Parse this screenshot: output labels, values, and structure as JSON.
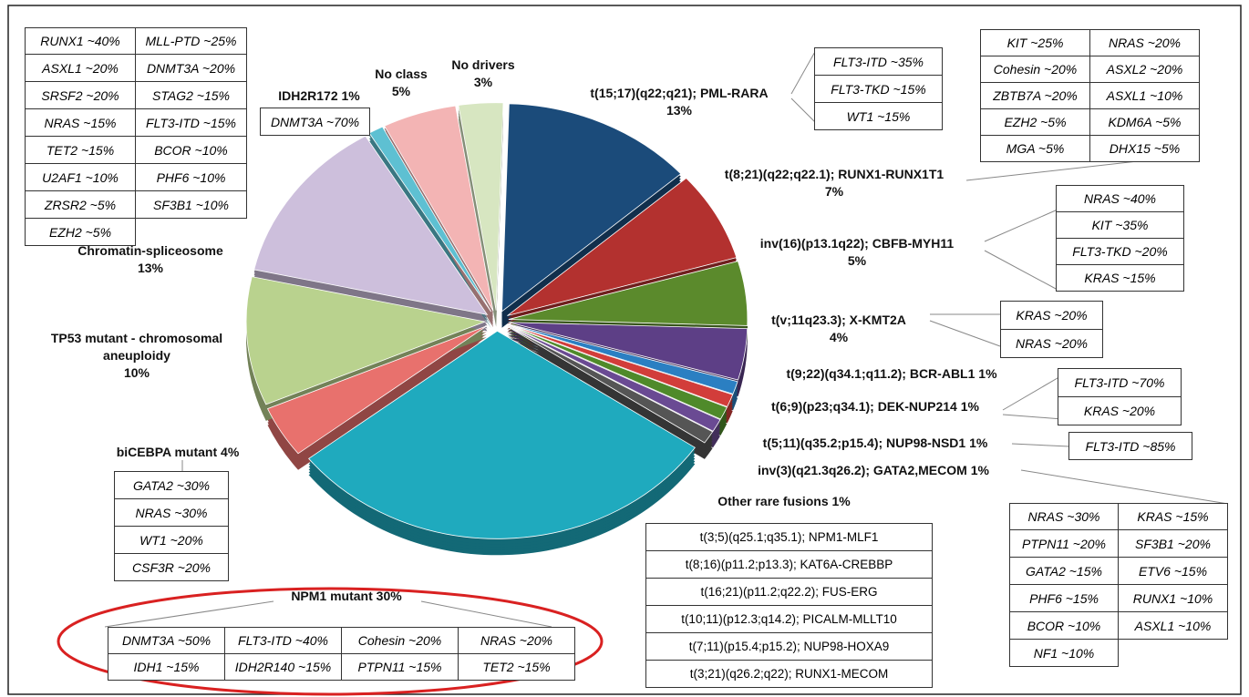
{
  "chart_data": {
    "type": "pie",
    "categories": [
      "t(15;17)(q22;q21); PML-RARA",
      "t(8;21)(q22;q22.1); RUNX1-RUNX1T1",
      "inv(16)(p13.1q22); CBFB-MYH11",
      "t(v;11q23.3); X-KMT2A",
      "t(9;22)(q34.1;q11.2); BCR-ABL1",
      "t(6;9)(p23;q34.1); DEK-NUP214",
      "t(5;11)(q35.2;p15.4); NUP98-NSD1",
      "inv(3)(q21.3q26.2); GATA2,MECOM",
      "Other rare fusions",
      "NPM1 mutant",
      "biCEBPA mutant",
      "TP53 mutant - chromosomal aneuploidy",
      "Chromatin-spliceosome",
      "IDH2R172",
      "No class",
      "No drivers"
    ],
    "values": [
      13,
      7,
      5,
      4,
      1,
      1,
      1,
      1,
      1,
      30,
      4,
      10,
      13,
      1,
      5,
      3
    ],
    "value_labels": [
      "13%",
      "7%",
      "5%",
      "4%",
      "1%",
      "1%",
      "1%",
      "1%",
      "1%",
      "30%",
      "4%",
      "10%",
      "13%",
      "1%",
      "5%",
      "3%"
    ],
    "colors": [
      "#1b4b7a",
      "#b3312f",
      "#5b8a2c",
      "#5d3f86",
      "#2b7fc2",
      "#d23d3a",
      "#4f8a2a",
      "#6a4a93",
      "#555555",
      "#1faabe",
      "#e8716d",
      "#b9d28e",
      "#cdbfdc",
      "#5ec0d2",
      "#f3b4b4",
      "#d7e6c1"
    ],
    "comutations": [
      [
        "FLT3-ITD ~35%",
        "FLT3-TKD ~15%",
        "WT1 ~15%"
      ],
      [
        "KIT ~25%",
        "NRAS ~20%",
        "Cohesin ~20%",
        "ASXL2 ~20%",
        "ZBTB7A ~20%",
        "ASXL1 ~10%",
        "EZH2 ~5%",
        "KDM6A ~5%",
        "MGA ~5%",
        "DHX15 ~5%"
      ],
      [
        "NRAS ~40%",
        "KIT ~35%",
        "FLT3-TKD ~20%",
        "KRAS ~15%"
      ],
      [
        "KRAS ~20%",
        "NRAS ~20%"
      ],
      null,
      [
        "FLT3-ITD ~70%",
        "KRAS ~20%"
      ],
      [
        "FLT3-ITD ~85%"
      ],
      [
        "NRAS ~30%",
        "KRAS ~15%",
        "PTPN11 ~20%",
        "SF3B1 ~20%",
        "GATA2 ~15%",
        "ETV6 ~15%",
        "PHF6 ~15%",
        "RUNX1 ~10%",
        "BCOR ~10%",
        "ASXL1 ~10%",
        "NF1 ~10%"
      ],
      [
        "t(3;5)(q25.1;q35.1); NPM1-MLF1",
        "t(8;16)(p11.2;p13.3); KAT6A-CREBBP",
        "t(16;21)(p11.2;q22.2); FUS-ERG",
        "t(10;11)(p12.3;q14.2); PICALM-MLLT10",
        "t(7;11)(p15.4;p15.2); NUP98-HOXA9",
        "t(3;21)(q26.2;q22); RUNX1-MECOM"
      ],
      [
        "DNMT3A ~50%",
        "FLT3-ITD ~40%",
        "Cohesin ~20%",
        "NRAS ~20%",
        "IDH1 ~15%",
        "IDH2R140 ~15%",
        "PTPN11 ~15%",
        "TET2 ~15%"
      ],
      [
        "GATA2 ~30%",
        "NRAS ~30%",
        "WT1 ~20%",
        "CSF3R ~20%"
      ],
      null,
      [
        "RUNX1 ~40%",
        "MLL-PTD ~25%",
        "ASXL1 ~20%",
        "DNMT3A ~20%",
        "SRSF2 ~20%",
        "STAG2 ~15%",
        "NRAS ~15%",
        "FLT3-ITD ~15%",
        "TET2 ~15%",
        "BCOR ~10%",
        "U2AF1 ~10%",
        "PHF6 ~10%",
        "ZRSR2 ~5%",
        "SF3B1 ~10%",
        "EZH2 ~5%"
      ],
      [
        "DNMT3A ~70%"
      ],
      null,
      null
    ]
  }
}
